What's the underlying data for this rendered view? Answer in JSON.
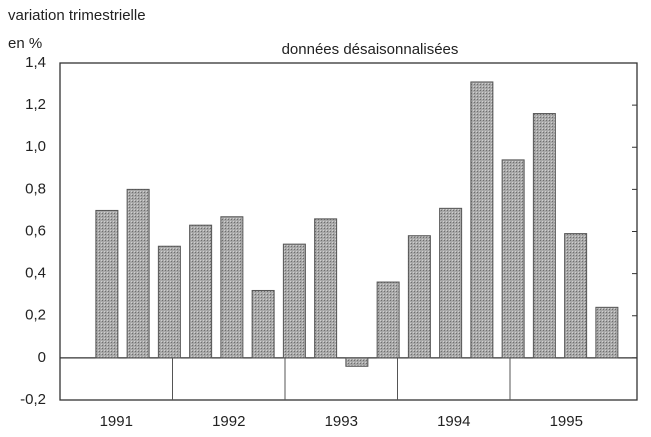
{
  "chart_data": {
    "type": "bar",
    "title": "données désaisonnalisées",
    "y_label": [
      "variation trimestrielle",
      "en %"
    ],
    "categories": [
      null,
      null,
      null,
      null,
      null,
      null,
      null,
      null,
      null,
      null,
      null,
      null,
      null,
      null,
      null,
      null,
      null,
      null
    ],
    "years": [
      "1991",
      "1992",
      "1993",
      "1994",
      "1995"
    ],
    "values": [
      null,
      0.7,
      0.8,
      0.53,
      0.63,
      0.67,
      0.32,
      0.54,
      0.66,
      -0.04,
      0.36,
      0.58,
      0.71,
      1.31,
      0.94,
      1.16,
      0.59,
      0.24
    ],
    "color": "#9a9a9a",
    "ylim": [
      -0.2,
      1.4
    ],
    "yticks": [
      {
        "value": -0.2,
        "label": "-0,2"
      },
      0,
      {
        "value": 0.2,
        "label": "0,2"
      },
      {
        "value": 0.4,
        "label": "0,4"
      },
      {
        "value": 0.6,
        "label": "0,6"
      },
      {
        "value": 0.8,
        "label": "0,8"
      },
      {
        "value": 1.0,
        "label": "1,0"
      },
      {
        "value": 1.2,
        "label": "1,2"
      },
      {
        "value": 1.4,
        "label": "1,4"
      }
    ],
    "grid": false
  }
}
